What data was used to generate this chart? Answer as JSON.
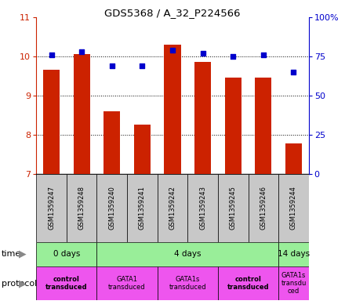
{
  "title": "GDS5368 / A_32_P224566",
  "samples": [
    "GSM1359247",
    "GSM1359248",
    "GSM1359240",
    "GSM1359241",
    "GSM1359242",
    "GSM1359243",
    "GSM1359245",
    "GSM1359246",
    "GSM1359244"
  ],
  "bar_values": [
    9.65,
    10.05,
    8.6,
    8.25,
    10.3,
    9.85,
    9.45,
    9.45,
    7.77
  ],
  "dot_values": [
    76,
    78,
    69,
    69,
    79,
    77,
    75,
    76,
    65
  ],
  "ylim": [
    7,
    11
  ],
  "y2lim": [
    0,
    100
  ],
  "yticks": [
    7,
    8,
    9,
    10,
    11
  ],
  "y2ticks": [
    0,
    25,
    50,
    75,
    100
  ],
  "y2ticklabels": [
    "0",
    "25",
    "50",
    "75",
    "100%"
  ],
  "bar_color": "#CC2200",
  "dot_color": "#0000CC",
  "bar_width": 0.55,
  "time_groups": [
    {
      "label": "0 days",
      "start": 0,
      "end": 2,
      "color": "#99EE99"
    },
    {
      "label": "4 days",
      "start": 2,
      "end": 8,
      "color": "#99EE99"
    },
    {
      "label": "14 days",
      "start": 8,
      "end": 9,
      "color": "#99EE99"
    }
  ],
  "protocol_groups": [
    {
      "label": "control\ntransduced",
      "start": 0,
      "end": 2,
      "color": "#EE55EE",
      "bold": true
    },
    {
      "label": "GATA1\ntransduced",
      "start": 2,
      "end": 4,
      "color": "#EE55EE",
      "bold": false
    },
    {
      "label": "GATA1s\ntransduced",
      "start": 4,
      "end": 6,
      "color": "#EE55EE",
      "bold": false
    },
    {
      "label": "control\ntransduced",
      "start": 6,
      "end": 8,
      "color": "#EE55EE",
      "bold": true
    },
    {
      "label": "GATA1s\ntransdu\nced",
      "start": 8,
      "end": 9,
      "color": "#EE55EE",
      "bold": false
    }
  ],
  "sample_bg_color": "#C8C8C8",
  "grid_color": "black",
  "axis_left_color": "#CC2200",
  "axis_right_color": "#0000CC",
  "fig_width": 4.4,
  "fig_height": 3.93,
  "dpi": 100
}
